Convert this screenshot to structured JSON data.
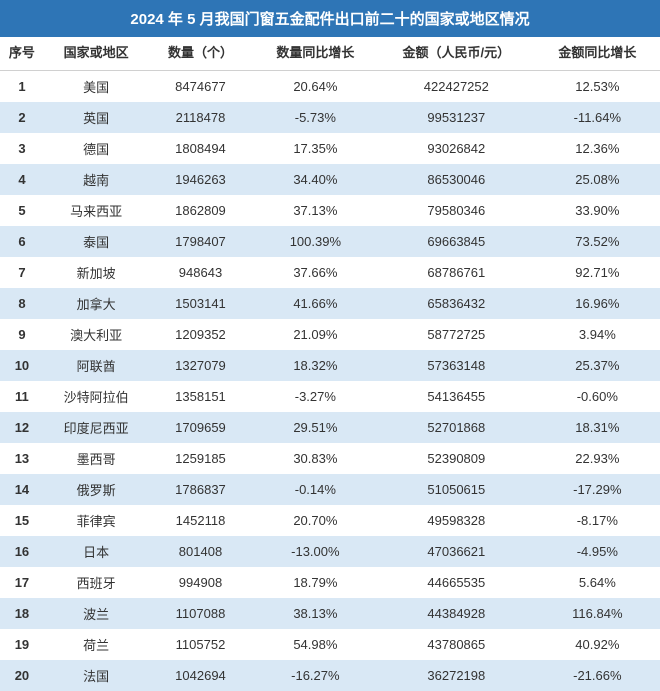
{
  "title": "2024 年 5 月我国门窗五金配件出口前二十的国家或地区情况",
  "columns": {
    "rank": "序号",
    "country": "国家或地区",
    "quantity": "数量（个）",
    "quantity_growth": "数量同比增长",
    "amount": "金额（人民币/元）",
    "amount_growth": "金额同比增长"
  },
  "rows": [
    {
      "rank": "1",
      "country": "美国",
      "quantity": "8474677",
      "quantity_growth": "20.64%",
      "amount": "422427252",
      "amount_growth": "12.53%"
    },
    {
      "rank": "2",
      "country": "英国",
      "quantity": "2118478",
      "quantity_growth": "-5.73%",
      "amount": "99531237",
      "amount_growth": "-11.64%"
    },
    {
      "rank": "3",
      "country": "德国",
      "quantity": "1808494",
      "quantity_growth": "17.35%",
      "amount": "93026842",
      "amount_growth": "12.36%"
    },
    {
      "rank": "4",
      "country": "越南",
      "quantity": "1946263",
      "quantity_growth": "34.40%",
      "amount": "86530046",
      "amount_growth": "25.08%"
    },
    {
      "rank": "5",
      "country": "马来西亚",
      "quantity": "1862809",
      "quantity_growth": "37.13%",
      "amount": "79580346",
      "amount_growth": "33.90%"
    },
    {
      "rank": "6",
      "country": "泰国",
      "quantity": "1798407",
      "quantity_growth": "100.39%",
      "amount": "69663845",
      "amount_growth": "73.52%"
    },
    {
      "rank": "7",
      "country": "新加坡",
      "quantity": "948643",
      "quantity_growth": "37.66%",
      "amount": "68786761",
      "amount_growth": "92.71%"
    },
    {
      "rank": "8",
      "country": "加拿大",
      "quantity": "1503141",
      "quantity_growth": "41.66%",
      "amount": "65836432",
      "amount_growth": "16.96%"
    },
    {
      "rank": "9",
      "country": "澳大利亚",
      "quantity": "1209352",
      "quantity_growth": "21.09%",
      "amount": "58772725",
      "amount_growth": "3.94%"
    },
    {
      "rank": "10",
      "country": "阿联酋",
      "quantity": "1327079",
      "quantity_growth": "18.32%",
      "amount": "57363148",
      "amount_growth": "25.37%"
    },
    {
      "rank": "11",
      "country": "沙特阿拉伯",
      "quantity": "1358151",
      "quantity_growth": "-3.27%",
      "amount": "54136455",
      "amount_growth": "-0.60%"
    },
    {
      "rank": "12",
      "country": "印度尼西亚",
      "quantity": "1709659",
      "quantity_growth": "29.51%",
      "amount": "52701868",
      "amount_growth": "18.31%"
    },
    {
      "rank": "13",
      "country": "墨西哥",
      "quantity": "1259185",
      "quantity_growth": "30.83%",
      "amount": "52390809",
      "amount_growth": "22.93%"
    },
    {
      "rank": "14",
      "country": "俄罗斯",
      "quantity": "1786837",
      "quantity_growth": "-0.14%",
      "amount": "51050615",
      "amount_growth": "-17.29%"
    },
    {
      "rank": "15",
      "country": "菲律宾",
      "quantity": "1452118",
      "quantity_growth": "20.70%",
      "amount": "49598328",
      "amount_growth": "-8.17%"
    },
    {
      "rank": "16",
      "country": "日本",
      "quantity": "801408",
      "quantity_growth": "-13.00%",
      "amount": "47036621",
      "amount_growth": "-4.95%"
    },
    {
      "rank": "17",
      "country": "西班牙",
      "quantity": "994908",
      "quantity_growth": "18.79%",
      "amount": "44665535",
      "amount_growth": "5.64%"
    },
    {
      "rank": "18",
      "country": "波兰",
      "quantity": "1107088",
      "quantity_growth": "38.13%",
      "amount": "44384928",
      "amount_growth": "116.84%"
    },
    {
      "rank": "19",
      "country": "荷兰",
      "quantity": "1105752",
      "quantity_growth": "54.98%",
      "amount": "43780865",
      "amount_growth": "40.92%"
    },
    {
      "rank": "20",
      "country": "法国",
      "quantity": "1042694",
      "quantity_growth": "-16.27%",
      "amount": "36272198",
      "amount_growth": "-21.66%"
    }
  ],
  "styles": {
    "title_bg": "#2e75b6",
    "title_color": "#ffffff",
    "row_odd_bg": "#ffffff",
    "row_even_bg": "#d9e8f5",
    "text_color": "#333333",
    "title_fontsize": 15,
    "header_fontsize": 13,
    "cell_fontsize": 13
  }
}
